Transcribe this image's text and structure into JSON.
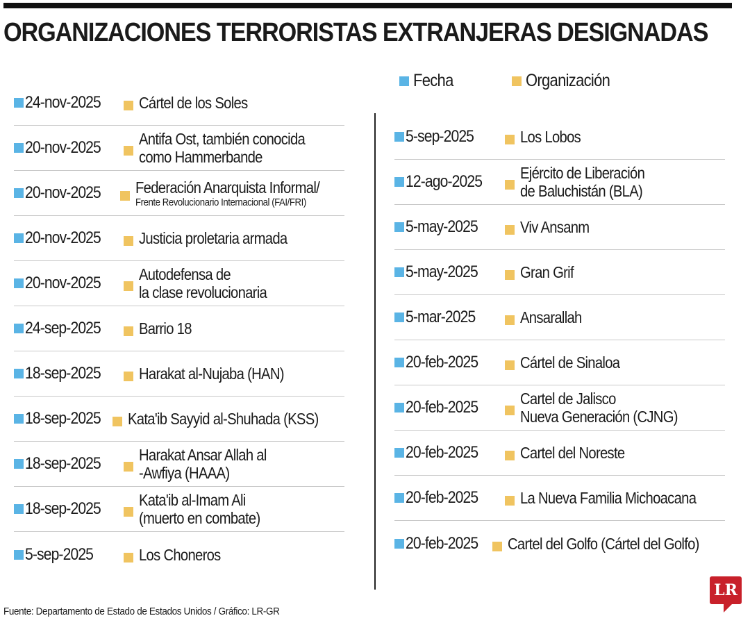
{
  "title": "ORGANIZACIONES TERRORISTAS EXTRANJERAS DESIGNADAS",
  "legend": {
    "date": "Fecha",
    "org": "Organización"
  },
  "colors": {
    "date": "#5ab4e5",
    "org": "#f0c460",
    "logo": "#c8202a"
  },
  "left": [
    {
      "date": "24-nov-2025",
      "org": "Cártel de los Soles"
    },
    {
      "date": "20-nov-2025",
      "org": "Antifa Ost, también conocida",
      "org2": "como Hammerbande"
    },
    {
      "date": "20-nov-2025",
      "org": "Federación Anarquista Informal/",
      "small": "Frente Revolucionario Internacional (FAI/FRI)"
    },
    {
      "date": "20-nov-2025",
      "org": "Justicia proletaria armada"
    },
    {
      "date": "20-nov-2025",
      "org": "Autodefensa de",
      "org2": "la clase revolucionaria"
    },
    {
      "date": "24-sep-2025",
      "org": "Barrio 18"
    },
    {
      "date": "18-sep-2025",
      "org": "Harakat al-Nujaba (HAN)"
    },
    {
      "date": "18-sep-2025",
      "org": "Kata'ib Sayyid al-Shuhada (KSS)"
    },
    {
      "date": "18-sep-2025",
      "org": "Harakat Ansar Allah al",
      "org2": "-Awfiya (HAAA)"
    },
    {
      "date": "18-sep-2025",
      "org": "Kata'ib al-Imam Ali",
      "org2": "(muerto en combate)"
    },
    {
      "date": "5-sep-2025",
      "org": "Los Choneros"
    }
  ],
  "right": [
    {
      "date": "5-sep-2025",
      "org": "Los Lobos"
    },
    {
      "date": "12-ago-2025",
      "org": "Ejército de Liberación",
      "org2": "de Baluchistán (BLA)"
    },
    {
      "date": "5-may-2025",
      "org": "Viv Ansanm"
    },
    {
      "date": "5-may-2025",
      "org": "Gran Grif"
    },
    {
      "date": "5-mar-2025",
      "org": "Ansarallah"
    },
    {
      "date": "20-feb-2025",
      "org": "Cártel de Sinaloa"
    },
    {
      "date": "20-feb-2025",
      "org": "Cartel de Jalisco",
      "org2": "Nueva Generación (CJNG)"
    },
    {
      "date": "20-feb-2025",
      "org": "Cartel del Noreste"
    },
    {
      "date": "20-feb-2025",
      "org": "La Nueva Familia Michoacana"
    },
    {
      "date": "20-feb-2025",
      "org": "Cartel del Golfo (Cártel del Golfo)"
    }
  ],
  "footer": "Fuente: Departamento de Estado de Estados Unidos / Gráfico: LR-GR",
  "logo": "LR"
}
